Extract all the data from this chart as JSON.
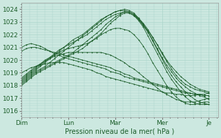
{
  "xlabel": "Pression niveau de la mer( hPa )",
  "ylim": [
    1015.5,
    1024.5
  ],
  "yticks": [
    1016,
    1017,
    1018,
    1019,
    1020,
    1021,
    1022,
    1023,
    1024
  ],
  "xlim": [
    0,
    4.2
  ],
  "xtick_labels": [
    "Dim",
    "Lun",
    "Mar",
    "Mer",
    "Je"
  ],
  "xtick_positions": [
    0.0,
    1.0,
    2.0,
    3.0,
    4.0
  ],
  "bg_color": "#cce8e0",
  "grid_color": "#aad4ca",
  "line_color": "#1a5c28",
  "lines": [
    [
      1018.0,
      1018.3,
      1018.6,
      1018.9,
      1019.1,
      1019.3,
      1019.5,
      1019.7,
      1019.9,
      1020.1,
      1020.3,
      1020.5,
      1020.7,
      1020.9,
      1021.2,
      1021.5,
      1021.8,
      1022.1,
      1022.5,
      1022.9,
      1023.2,
      1023.5,
      1023.7,
      1023.7,
      1023.5,
      1023.2,
      1022.8,
      1022.3,
      1021.8,
      1021.2,
      1020.6,
      1020.0,
      1019.5,
      1019.1,
      1018.7,
      1018.4,
      1018.1,
      1017.9,
      1017.7,
      1017.6,
      1017.5
    ],
    [
      1018.1,
      1018.4,
      1018.7,
      1019.0,
      1019.2,
      1019.4,
      1019.6,
      1019.8,
      1020.0,
      1020.2,
      1020.4,
      1020.6,
      1020.9,
      1021.2,
      1021.5,
      1021.8,
      1022.1,
      1022.4,
      1022.8,
      1023.1,
      1023.4,
      1023.6,
      1023.8,
      1023.8,
      1023.6,
      1023.3,
      1022.9,
      1022.4,
      1021.8,
      1021.2,
      1020.5,
      1019.9,
      1019.3,
      1018.8,
      1018.4,
      1018.1,
      1017.9,
      1017.7,
      1017.6,
      1017.5,
      1017.4
    ],
    [
      1018.2,
      1018.5,
      1018.8,
      1019.1,
      1019.3,
      1019.5,
      1019.8,
      1020.1,
      1020.4,
      1020.7,
      1021.0,
      1021.3,
      1021.6,
      1021.9,
      1022.2,
      1022.5,
      1022.8,
      1023.1,
      1023.4,
      1023.6,
      1023.8,
      1023.9,
      1023.9,
      1023.8,
      1023.6,
      1023.2,
      1022.7,
      1022.2,
      1021.6,
      1020.9,
      1020.2,
      1019.6,
      1019.1,
      1018.6,
      1018.2,
      1017.9,
      1017.6,
      1017.4,
      1017.2,
      1017.1,
      1016.9
    ],
    [
      1018.3,
      1018.6,
      1018.9,
      1019.2,
      1019.5,
      1019.8,
      1020.1,
      1020.4,
      1020.7,
      1021.0,
      1021.3,
      1021.6,
      1021.8,
      1022.0,
      1022.3,
      1022.6,
      1022.9,
      1023.2,
      1023.4,
      1023.6,
      1023.8,
      1023.9,
      1024.0,
      1023.9,
      1023.7,
      1023.3,
      1022.8,
      1022.2,
      1021.5,
      1020.8,
      1020.1,
      1019.4,
      1018.8,
      1018.3,
      1017.9,
      1017.5,
      1017.2,
      1016.9,
      1016.7,
      1016.6,
      1016.5
    ],
    [
      1018.4,
      1018.7,
      1019.0,
      1019.3,
      1019.6,
      1019.9,
      1020.2,
      1020.5,
      1020.8,
      1021.0,
      1021.2,
      1021.4,
      1021.6,
      1021.8,
      1022.0,
      1022.3,
      1022.6,
      1022.9,
      1023.2,
      1023.4,
      1023.6,
      1023.7,
      1023.8,
      1023.7,
      1023.5,
      1023.1,
      1022.6,
      1021.9,
      1021.2,
      1020.5,
      1019.8,
      1019.1,
      1018.5,
      1018.0,
      1017.5,
      1017.1,
      1016.8,
      1016.6,
      1016.5,
      1016.5,
      1016.5
    ],
    [
      1018.5,
      1018.8,
      1019.1,
      1019.4,
      1019.7,
      1020.0,
      1020.2,
      1020.4,
      1020.6,
      1020.8,
      1020.9,
      1021.0,
      1021.1,
      1021.2,
      1021.3,
      1021.5,
      1021.7,
      1022.0,
      1022.2,
      1022.4,
      1022.5,
      1022.5,
      1022.4,
      1022.3,
      1022.0,
      1021.6,
      1021.1,
      1020.5,
      1019.8,
      1019.2,
      1018.6,
      1018.0,
      1017.5,
      1017.1,
      1016.8,
      1016.6,
      1016.5,
      1016.5,
      1016.6,
      1016.7,
      1016.7
    ],
    [
      1018.6,
      1018.9,
      1019.2,
      1019.5,
      1019.7,
      1019.9,
      1020.1,
      1020.3,
      1020.4,
      1020.5,
      1020.6,
      1020.6,
      1020.6,
      1020.6,
      1020.6,
      1020.6,
      1020.6,
      1020.6,
      1020.5,
      1020.4,
      1020.2,
      1020.0,
      1019.8,
      1019.5,
      1019.3,
      1019.0,
      1018.7,
      1018.4,
      1018.1,
      1017.8,
      1017.5,
      1017.3,
      1017.1,
      1016.9,
      1016.8,
      1016.7,
      1016.7,
      1016.7,
      1016.8,
      1016.9,
      1017.0
    ],
    [
      1019.0,
      1019.2,
      1019.4,
      1019.5,
      1019.6,
      1019.7,
      1019.8,
      1019.8,
      1019.8,
      1019.8,
      1019.7,
      1019.6,
      1019.5,
      1019.4,
      1019.3,
      1019.2,
      1019.0,
      1018.9,
      1018.7,
      1018.6,
      1018.5,
      1018.4,
      1018.3,
      1018.2,
      1018.1,
      1018.0,
      1017.9,
      1017.8,
      1017.7,
      1017.6,
      1017.5,
      1017.4,
      1017.4,
      1017.3,
      1017.3,
      1017.2,
      1017.2,
      1017.2,
      1017.3,
      1017.3,
      1017.4
    ],
    [
      1020.7,
      1020.9,
      1021.0,
      1021.0,
      1020.9,
      1020.8,
      1020.7,
      1020.5,
      1020.4,
      1020.2,
      1020.1,
      1020.0,
      1019.9,
      1019.8,
      1019.7,
      1019.6,
      1019.5,
      1019.4,
      1019.3,
      1019.1,
      1019.0,
      1018.9,
      1018.7,
      1018.6,
      1018.5,
      1018.4,
      1018.3,
      1018.2,
      1018.1,
      1018.0,
      1017.9,
      1017.8,
      1017.7,
      1017.6,
      1017.5,
      1017.4,
      1017.4,
      1017.3,
      1017.3,
      1017.2,
      1017.2
    ],
    [
      1021.0,
      1021.2,
      1021.3,
      1021.2,
      1021.1,
      1020.9,
      1020.7,
      1020.6,
      1020.5,
      1020.4,
      1020.3,
      1020.2,
      1020.1,
      1020.0,
      1019.9,
      1019.8,
      1019.7,
      1019.6,
      1019.5,
      1019.4,
      1019.2,
      1019.1,
      1018.9,
      1018.8,
      1018.6,
      1018.5,
      1018.4,
      1018.3,
      1018.2,
      1018.1,
      1018.0,
      1017.9,
      1017.8,
      1017.7,
      1017.6,
      1017.5,
      1017.4,
      1017.3,
      1017.3,
      1017.2,
      1017.2
    ]
  ]
}
